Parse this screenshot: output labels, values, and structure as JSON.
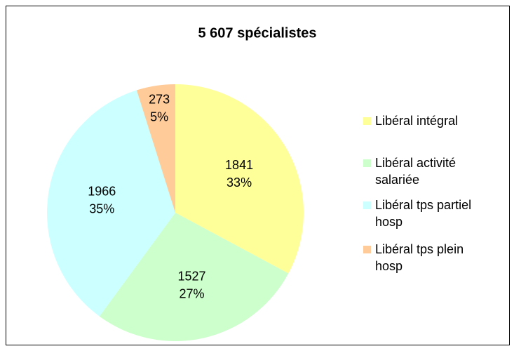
{
  "chart_data": {
    "type": "pie",
    "title": "5 607 spécialistes",
    "categories": [
      "Libéral intégral",
      "Libéral activité salariée",
      "Libéral tps partiel hosp",
      "Libéral tps plein hosp"
    ],
    "values": [
      1841,
      1527,
      1966,
      273
    ],
    "percent_labels": [
      "33%",
      "27%",
      "35%",
      "5%"
    ],
    "colors": [
      "#ffff99",
      "#ccffcc",
      "#ccffff",
      "#ffcc99"
    ],
    "title_color": "#3366ff",
    "legend": "right"
  }
}
